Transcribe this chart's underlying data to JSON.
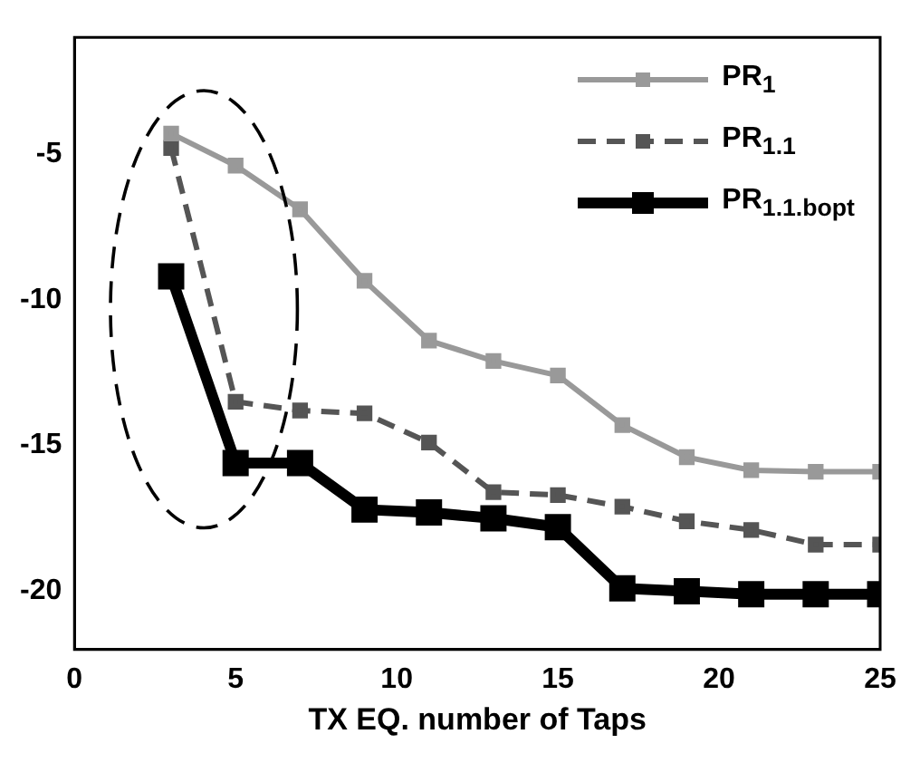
{
  "chart_data": {
    "type": "line",
    "xlabel": "TX EQ. number of Taps",
    "x": [
      3,
      5,
      7,
      9,
      11,
      13,
      15,
      17,
      19,
      21,
      23,
      25
    ],
    "series": [
      {
        "name": "PR$_{1}$",
        "color": "#999999",
        "line_style": "solid",
        "values": [
          -4.3,
          -5.4,
          -6.9,
          -9.35,
          -11.4,
          -12.1,
          -12.6,
          -14.3,
          -15.4,
          -15.85,
          -15.9,
          -15.9
        ]
      },
      {
        "name": "PR$_{1.1}$",
        "color": "#555555",
        "line_style": "dashed",
        "values": [
          -4.8,
          -13.5,
          -13.8,
          -13.9,
          -14.9,
          -16.6,
          -16.7,
          -17.1,
          -17.6,
          -17.9,
          -18.4,
          -18.4
        ]
      },
      {
        "name": "PR$_{1.1.bopt}$",
        "color": "#000000",
        "line_style": "solid",
        "values": [
          -9.2,
          -15.6,
          -15.6,
          -17.2,
          -17.3,
          -17.5,
          -17.8,
          -19.9,
          -20.0,
          -20.1,
          -20.1,
          -20.1
        ]
      }
    ],
    "xlim": [
      0,
      25
    ],
    "xticks": [
      0,
      5,
      10,
      15,
      20,
      25
    ],
    "ylim": [
      -22,
      -1
    ],
    "yticks": [
      -20,
      -15,
      -10,
      -5
    ],
    "grid": false,
    "legend": "top right",
    "marker": "square"
  }
}
